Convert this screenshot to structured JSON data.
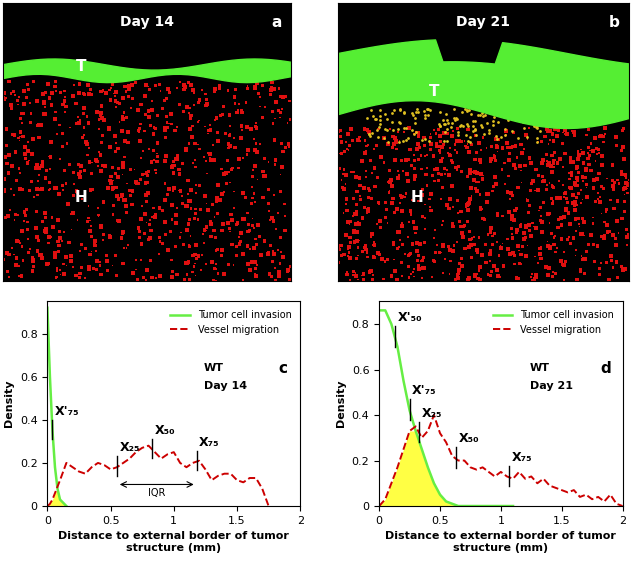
{
  "images": [
    {
      "panel": "a",
      "title": "Day 14",
      "labels": [
        "T",
        "H"
      ]
    },
    {
      "panel": "b",
      "title": "Day 21",
      "labels": [
        "T",
        "H"
      ]
    }
  ],
  "chart_data": [
    {
      "type": "line",
      "panel": "c",
      "annotations": [
        "WT",
        "Day 14"
      ],
      "x_label": "Distance to external border of tumor\nstructure (mm)",
      "y_label": "Density",
      "x": [
        0,
        0.02,
        0.04,
        0.06,
        0.08,
        0.1,
        0.15,
        0.2,
        0.25,
        0.3,
        0.35,
        0.4,
        0.45,
        0.5,
        0.55,
        0.6,
        0.65,
        0.7,
        0.75,
        0.8,
        0.85,
        0.9,
        0.95,
        1.0,
        1.05,
        1.1,
        1.15,
        1.2,
        1.25,
        1.3,
        1.35,
        1.4,
        1.45,
        1.5,
        1.55,
        1.6,
        1.65,
        1.7,
        1.75
      ],
      "series": [
        {
          "name": "Tumor cell invasion",
          "color": "#66ee44",
          "line_style": "solid",
          "values": [
            0.92,
            0.6,
            0.35,
            0.18,
            0.08,
            0.03,
            0.0,
            null,
            null,
            null,
            null,
            null,
            null,
            null,
            null,
            null,
            null,
            null,
            null,
            null,
            null,
            null,
            null,
            null,
            null,
            null,
            null,
            null,
            null,
            null,
            null,
            null,
            null,
            null,
            null,
            null,
            null,
            null,
            null
          ]
        },
        {
          "name": "Vessel migration",
          "color": "#cc0000",
          "line_style": "dashed",
          "values": [
            0.0,
            0.01,
            0.03,
            0.06,
            0.09,
            0.12,
            0.2,
            0.18,
            0.16,
            0.15,
            0.18,
            0.2,
            0.19,
            0.17,
            0.18,
            0.2,
            0.22,
            0.25,
            0.27,
            0.28,
            0.25,
            0.22,
            0.24,
            0.25,
            0.2,
            0.18,
            0.2,
            0.21,
            0.17,
            0.12,
            0.14,
            0.15,
            0.15,
            0.12,
            0.11,
            0.13,
            0.13,
            0.08,
            0.0
          ]
        }
      ],
      "quantiles": [
        {
          "label": "X'₇₅",
          "x": 0.04,
          "series": "Tumor cell invasion"
        },
        {
          "label": "X₂₅",
          "x": 0.55,
          "series": "Vessel migration"
        },
        {
          "label": "X₅₀",
          "x": 0.83,
          "series": "Vessel migration"
        },
        {
          "label": "X₇₅",
          "x": 1.18,
          "series": "Vessel migration"
        }
      ],
      "iqr": {
        "label": "IQR",
        "from": 0.55,
        "to": 1.18
      },
      "xlim": [
        0,
        2
      ],
      "xticks": [
        0,
        0.5,
        1,
        1.5,
        2
      ],
      "ylim": [
        0,
        0.95
      ],
      "yticks": [
        0,
        0.2,
        0.4,
        0.6,
        0.8
      ],
      "legend": "upper right"
    },
    {
      "type": "line",
      "panel": "d",
      "annotations": [
        "WT",
        "Day 21"
      ],
      "x_label": "Distance to external border of tumor\nstructure (mm)",
      "y_label": "Density",
      "x": [
        0,
        0.05,
        0.1,
        0.15,
        0.2,
        0.25,
        0.3,
        0.35,
        0.4,
        0.45,
        0.5,
        0.55,
        0.6,
        0.65,
        0.7,
        0.75,
        0.8,
        0.85,
        0.9,
        0.95,
        1.0,
        1.05,
        1.1,
        1.15,
        1.2,
        1.25,
        1.3,
        1.35,
        1.4,
        1.45,
        1.5,
        1.55,
        1.6,
        1.65,
        1.7,
        1.75,
        1.8,
        1.85,
        1.9,
        1.95,
        2.0
      ],
      "series": [
        {
          "name": "Tumor cell invasion",
          "color": "#66ee44",
          "line_style": "solid",
          "values": [
            0.86,
            0.86,
            0.8,
            0.7,
            0.55,
            0.42,
            0.33,
            0.25,
            0.17,
            0.1,
            0.05,
            0.02,
            0.01,
            0.0,
            0.0,
            0.0,
            0.0,
            0.0,
            0.0,
            0.0,
            0.0,
            0.0,
            0.0,
            null,
            null,
            null,
            null,
            null,
            null,
            null,
            null,
            null,
            null,
            null,
            null,
            null,
            null,
            null,
            null,
            null,
            null
          ]
        },
        {
          "name": "Vessel migration",
          "color": "#cc0000",
          "line_style": "dashed",
          "values": [
            0.0,
            0.03,
            0.1,
            0.17,
            0.25,
            0.33,
            0.35,
            0.3,
            0.33,
            0.4,
            0.32,
            0.28,
            0.22,
            0.2,
            0.2,
            0.17,
            0.16,
            0.17,
            0.15,
            0.13,
            0.15,
            0.13,
            0.12,
            0.15,
            0.12,
            0.13,
            0.1,
            0.12,
            0.09,
            0.08,
            0.07,
            0.06,
            0.07,
            0.04,
            0.05,
            0.03,
            0.04,
            0.02,
            0.05,
            0.01,
            0.0
          ]
        }
      ],
      "quantiles": [
        {
          "label": "X'₅₀",
          "x": 0.13,
          "series": "Tumor cell invasion"
        },
        {
          "label": "X'₇₅",
          "x": 0.25,
          "series": "Tumor cell invasion"
        },
        {
          "label": "X₂₅",
          "x": 0.33,
          "series": "Vessel migration"
        },
        {
          "label": "X₅₀",
          "x": 0.63,
          "series": "Vessel migration"
        },
        {
          "label": "X₇₅",
          "x": 1.07,
          "series": "Vessel migration"
        }
      ],
      "xlim": [
        0,
        2
      ],
      "xticks": [
        0,
        0.5,
        1,
        1.5,
        2
      ],
      "ylim": [
        0,
        0.9
      ],
      "yticks": [
        0,
        0.2,
        0.4,
        0.6,
        0.8
      ],
      "legend": "upper right"
    }
  ]
}
